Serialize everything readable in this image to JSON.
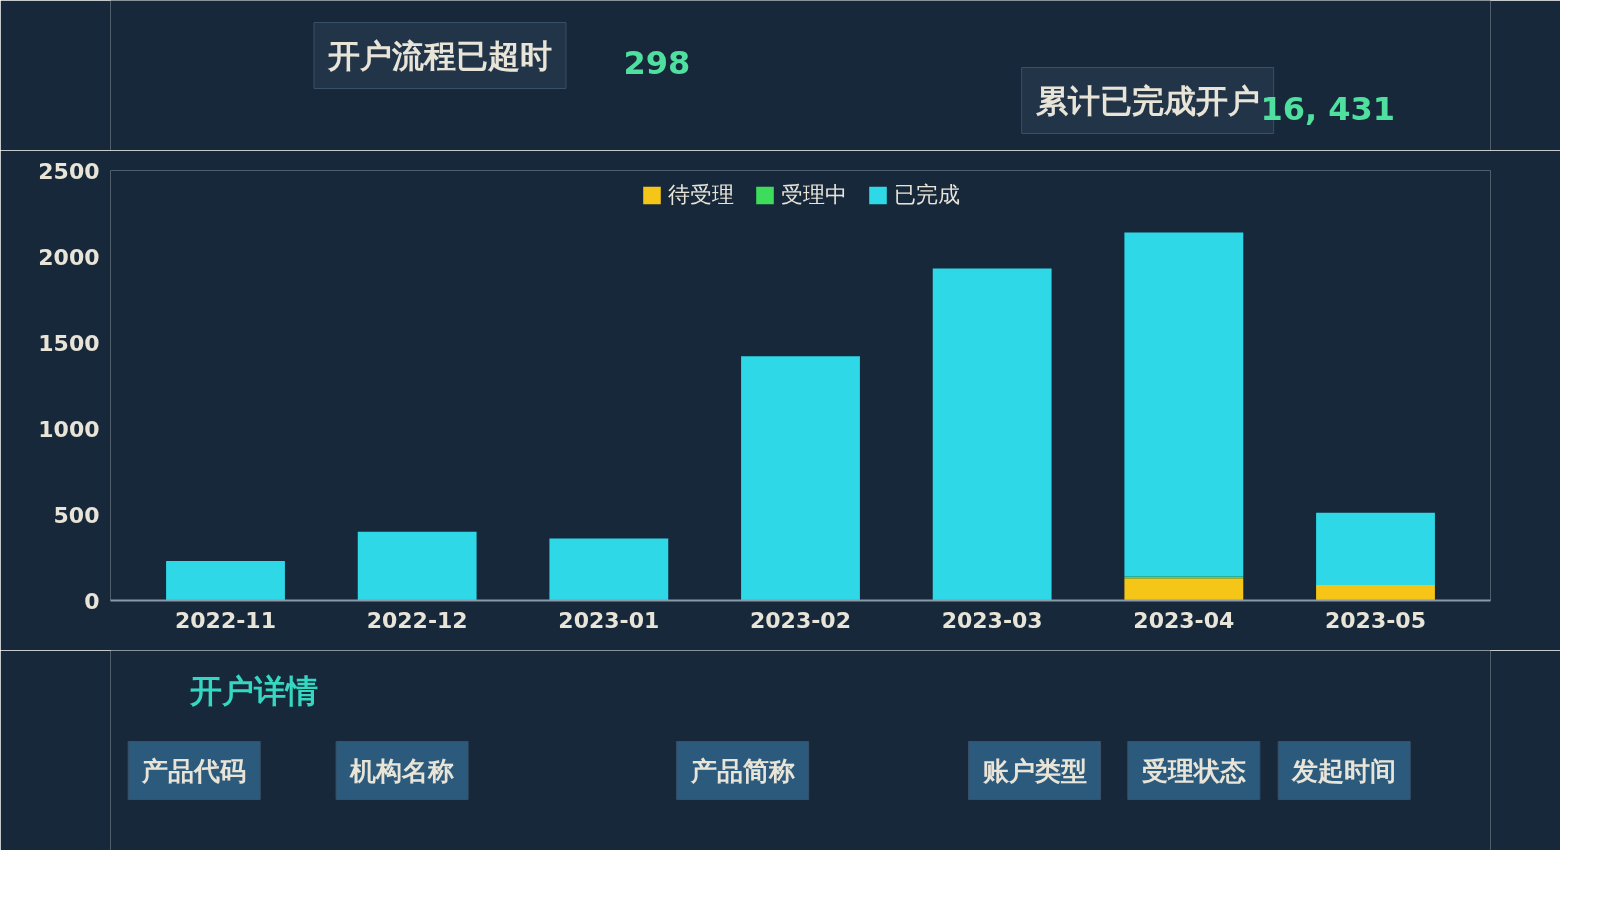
{
  "chart_data": {
    "type": "bar",
    "stacked": true,
    "categories": [
      "2022-11",
      "2022-12",
      "2023-01",
      "2023-02",
      "2023-03",
      "2023-04",
      "2023-05"
    ],
    "series": [
      {
        "name": "待受理",
        "color": "#f5c518",
        "values": [
          0,
          0,
          0,
          0,
          0,
          130,
          90
        ]
      },
      {
        "name": "受理中",
        "color": "#3ddc5a",
        "values": [
          0,
          0,
          0,
          0,
          0,
          10,
          0
        ]
      },
      {
        "name": "已完成",
        "color": "#2ed8e6",
        "values": [
          230,
          400,
          360,
          1420,
          1930,
          2000,
          420
        ]
      }
    ],
    "ylim": [
      0,
      2500
    ],
    "yticks": [
      0,
      500,
      1000,
      1500,
      2000,
      2500
    ],
    "grid": false,
    "legend": "top",
    "annotations": [
      "开户流程已超时",
      "298",
      "累计已完成开户",
      "16, 431",
      "开户详情",
      "产品代码",
      "机构名称",
      "产品简称",
      "账户类型",
      "受理状态",
      "发起时间"
    ]
  }
}
